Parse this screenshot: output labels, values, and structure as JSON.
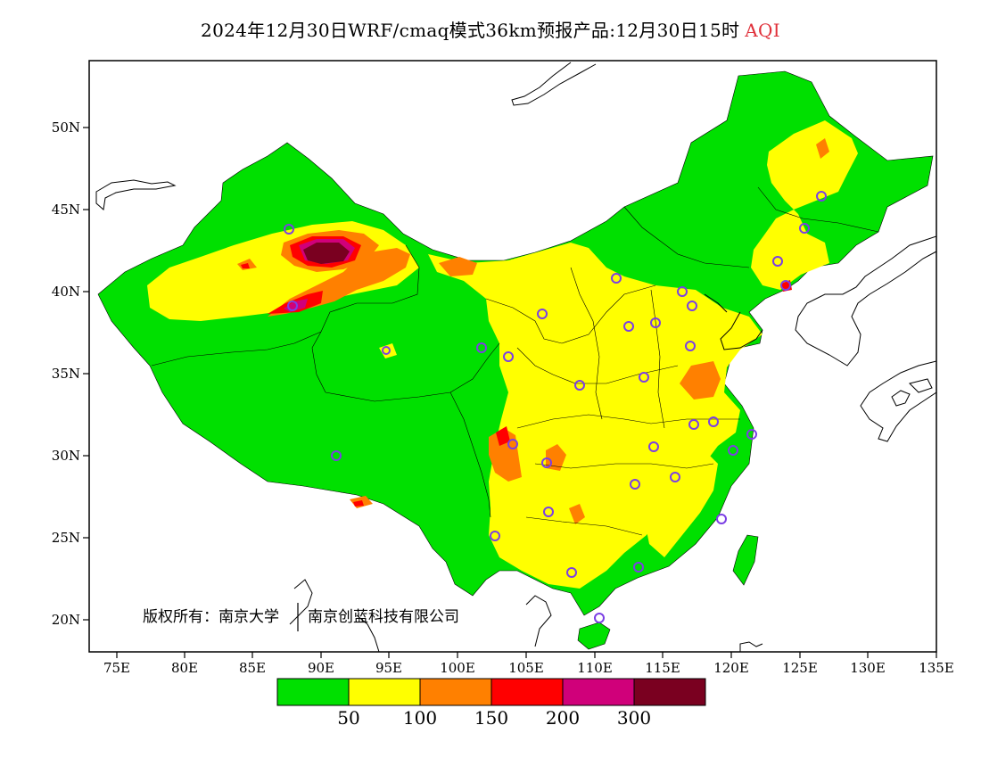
{
  "title": {
    "main": "2024年12月30日WRF/cmaq模式36km预报产品:12月30日15时",
    "product": "AQI"
  },
  "map": {
    "lat_ticks": [
      "50N",
      "45N",
      "40N",
      "35N",
      "30N",
      "25N",
      "20N"
    ],
    "lon_ticks": [
      "75E",
      "80E",
      "85E",
      "90E",
      "95E",
      "100E",
      "105E",
      "110E",
      "115E",
      "120E",
      "125E",
      "130E",
      "135E"
    ],
    "copyright": "版权所有：南京大学",
    "company": "南京创蓝科技有限公司",
    "colors": {
      "good": "#00e000",
      "moderate": "#ffff00",
      "usg": "#ff8000",
      "unhealthy": "#ff0000",
      "very_unhealthy": "#d0007a",
      "hazardous": "#7a0020",
      "site_marker": "#7b3fe4"
    }
  },
  "colorbar": {
    "colors": [
      "#00e000",
      "#ffff00",
      "#ff8000",
      "#ff0000",
      "#d0007a",
      "#7a0020"
    ],
    "labels": [
      "50",
      "100",
      "150",
      "200",
      "300"
    ]
  }
}
